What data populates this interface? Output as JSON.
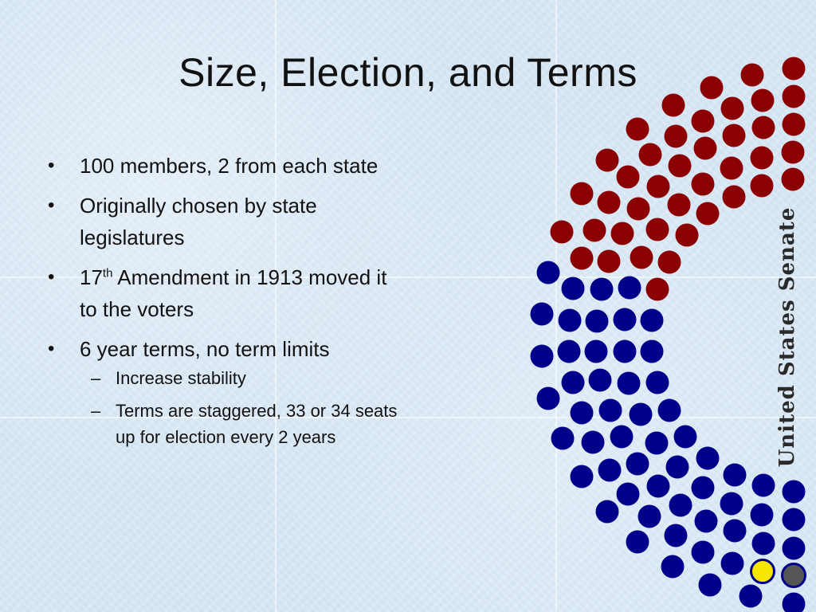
{
  "slide": {
    "title": "Size, Election, and Terms",
    "bullets": [
      {
        "text": "100 members, 2 from each state"
      },
      {
        "text": "Originally chosen by state legislatures"
      },
      {
        "ordinal_number": "17",
        "ordinal_suffix": "th",
        "text_after": " Amendment in 1913 moved it to the voters"
      },
      {
        "text": "6 year terms, no term limits",
        "sub_items": [
          "Increase stability",
          "Terms are staggered, 33 or 34 seats up for election every 2 years"
        ]
      }
    ],
    "side_label": "United States Senate"
  },
  "colors": {
    "republican": "#8b0000",
    "democrat": "#00008b",
    "independent_yellow": "#f6e600",
    "independent_gray": "#555555"
  },
  "seats": {
    "republican_count": 52,
    "democrat_count": 46,
    "independent_yellow_count": 1,
    "independent_gray_count": 1,
    "total": 100
  }
}
